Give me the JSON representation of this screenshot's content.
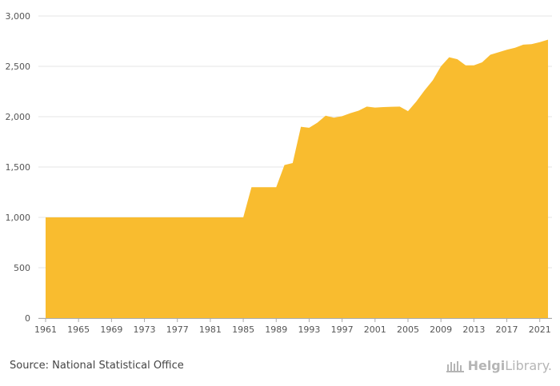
{
  "source": "Source: National Statistical Office",
  "brand": {
    "part1": "Helgi",
    "part2": "Library."
  },
  "colors": {
    "area": "#f9bc2f",
    "grid": "#e6e6e6",
    "axis": "#aaaaaa"
  },
  "chart_data": {
    "type": "area",
    "title": "",
    "xlabel": "",
    "ylabel": "",
    "xlim": [
      1961,
      2022
    ],
    "ylim": [
      0,
      3000
    ],
    "grid": true,
    "legend": "none",
    "yticks": [
      0,
      500,
      1000,
      1500,
      2000,
      2500,
      3000
    ],
    "ytick_labels": [
      "0",
      "500",
      "1,000",
      "1,500",
      "2,000",
      "2,500",
      "3,000"
    ],
    "xticks": [
      1961,
      1965,
      1969,
      1973,
      1977,
      1981,
      1985,
      1989,
      1993,
      1997,
      2001,
      2005,
      2009,
      2013,
      2017,
      2021
    ],
    "series": [
      {
        "x": [
          1961,
          1962,
          1963,
          1964,
          1965,
          1966,
          1967,
          1968,
          1969,
          1970,
          1971,
          1972,
          1973,
          1974,
          1975,
          1976,
          1977,
          1978,
          1979,
          1980,
          1981,
          1982,
          1983,
          1984,
          1985,
          1986,
          1987,
          1988,
          1989,
          1990,
          1991,
          1992,
          1993,
          1994,
          1995,
          1996,
          1997,
          1998,
          1999,
          2000,
          2001,
          2002,
          2003,
          2004,
          2005,
          2006,
          2007,
          2008,
          2009,
          2010,
          2011,
          2012,
          2013,
          2014,
          2015,
          2016,
          2017,
          2018,
          2019,
          2020,
          2021,
          2022
        ],
        "values": [
          1000,
          1000,
          1000,
          1000,
          1000,
          1000,
          1000,
          1000,
          1000,
          1000,
          1000,
          1000,
          1000,
          1000,
          1000,
          1000,
          1000,
          1000,
          1000,
          1000,
          1000,
          1000,
          1000,
          1000,
          1000,
          1300,
          1300,
          1300,
          1300,
          1520,
          1540,
          1900,
          1890,
          1940,
          2010,
          1990,
          2005,
          2035,
          2060,
          2100,
          2090,
          2095,
          2098,
          2100,
          2055,
          2150,
          2260,
          2360,
          2500,
          2590,
          2570,
          2510,
          2510,
          2540,
          2615,
          2640,
          2665,
          2685,
          2715,
          2720,
          2740,
          2765
        ]
      }
    ]
  }
}
